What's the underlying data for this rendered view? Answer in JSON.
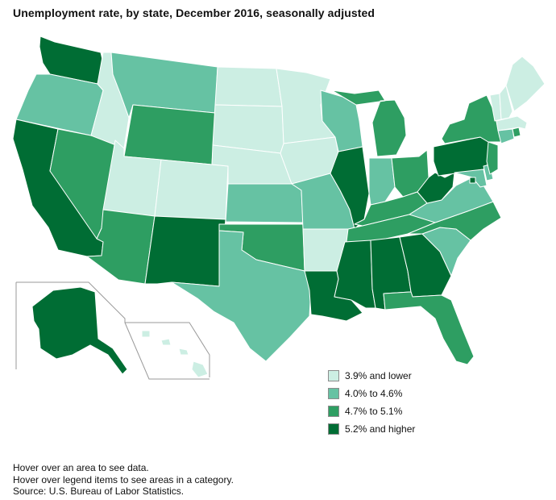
{
  "title": "Unemployment rate, by state, December 2016, seasonally adjusted",
  "legend": [
    {
      "label": "3.9% and lower",
      "color": "#cceee3"
    },
    {
      "label": "4.0% to 4.6%",
      "color": "#66c2a3"
    },
    {
      "label": "4.7% to 5.1%",
      "color": "#2e9e62"
    },
    {
      "label": "5.2% and higher",
      "color": "#006d34"
    }
  ],
  "notes": [
    "Hover over an area to see data.",
    "Hover over legend items to see areas in a category.",
    "Source: U.S. Bureau of Labor Statistics."
  ],
  "map_data": {
    "WA": "5.2% and higher",
    "OR": "4.0% to 4.6%",
    "CA": "5.2% and higher",
    "NV": "4.7% to 5.1%",
    "ID": "3.9% and lower",
    "MT": "4.0% to 4.6%",
    "WY": "4.7% to 5.1%",
    "UT": "3.9% and lower",
    "AZ": "4.7% to 5.1%",
    "CO": "3.9% and lower",
    "NM": "5.2% and higher",
    "ND": "3.9% and lower",
    "SD": "3.9% and lower",
    "NE": "3.9% and lower",
    "KS": "4.0% to 4.6%",
    "OK": "4.7% to 5.1%",
    "TX": "4.0% to 4.6%",
    "MN": "3.9% and lower",
    "IA": "3.9% and lower",
    "MO": "4.0% to 4.6%",
    "AR": "3.9% and lower",
    "LA": "5.2% and higher",
    "WI": "4.0% to 4.6%",
    "IL": "5.2% and higher",
    "MS": "5.2% and higher",
    "MI": "4.7% to 5.1%",
    "IN": "4.0% to 4.6%",
    "KY": "4.7% to 5.1%",
    "TN": "4.7% to 5.1%",
    "AL": "5.2% and higher",
    "OH": "4.7% to 5.1%",
    "WV": "5.2% and higher",
    "GA": "5.2% and higher",
    "FL": "4.7% to 5.1%",
    "SC": "4.0% to 4.6%",
    "NC": "4.7% to 5.1%",
    "VA": "4.0% to 4.6%",
    "PA": "5.2% and higher",
    "NY": "4.7% to 5.1%",
    "NJ": "4.7% to 5.1%",
    "DE": "4.0% to 4.6%",
    "MD": "4.0% to 4.6%",
    "DC": "5.2% and higher",
    "CT": "4.0% to 4.6%",
    "RI": "4.7% to 5.1%",
    "MA": "3.9% and lower",
    "VT": "3.9% and lower",
    "NH": "3.9% and lower",
    "ME": "3.9% and lower",
    "AK": "5.2% and higher",
    "HI": "3.9% and lower"
  }
}
